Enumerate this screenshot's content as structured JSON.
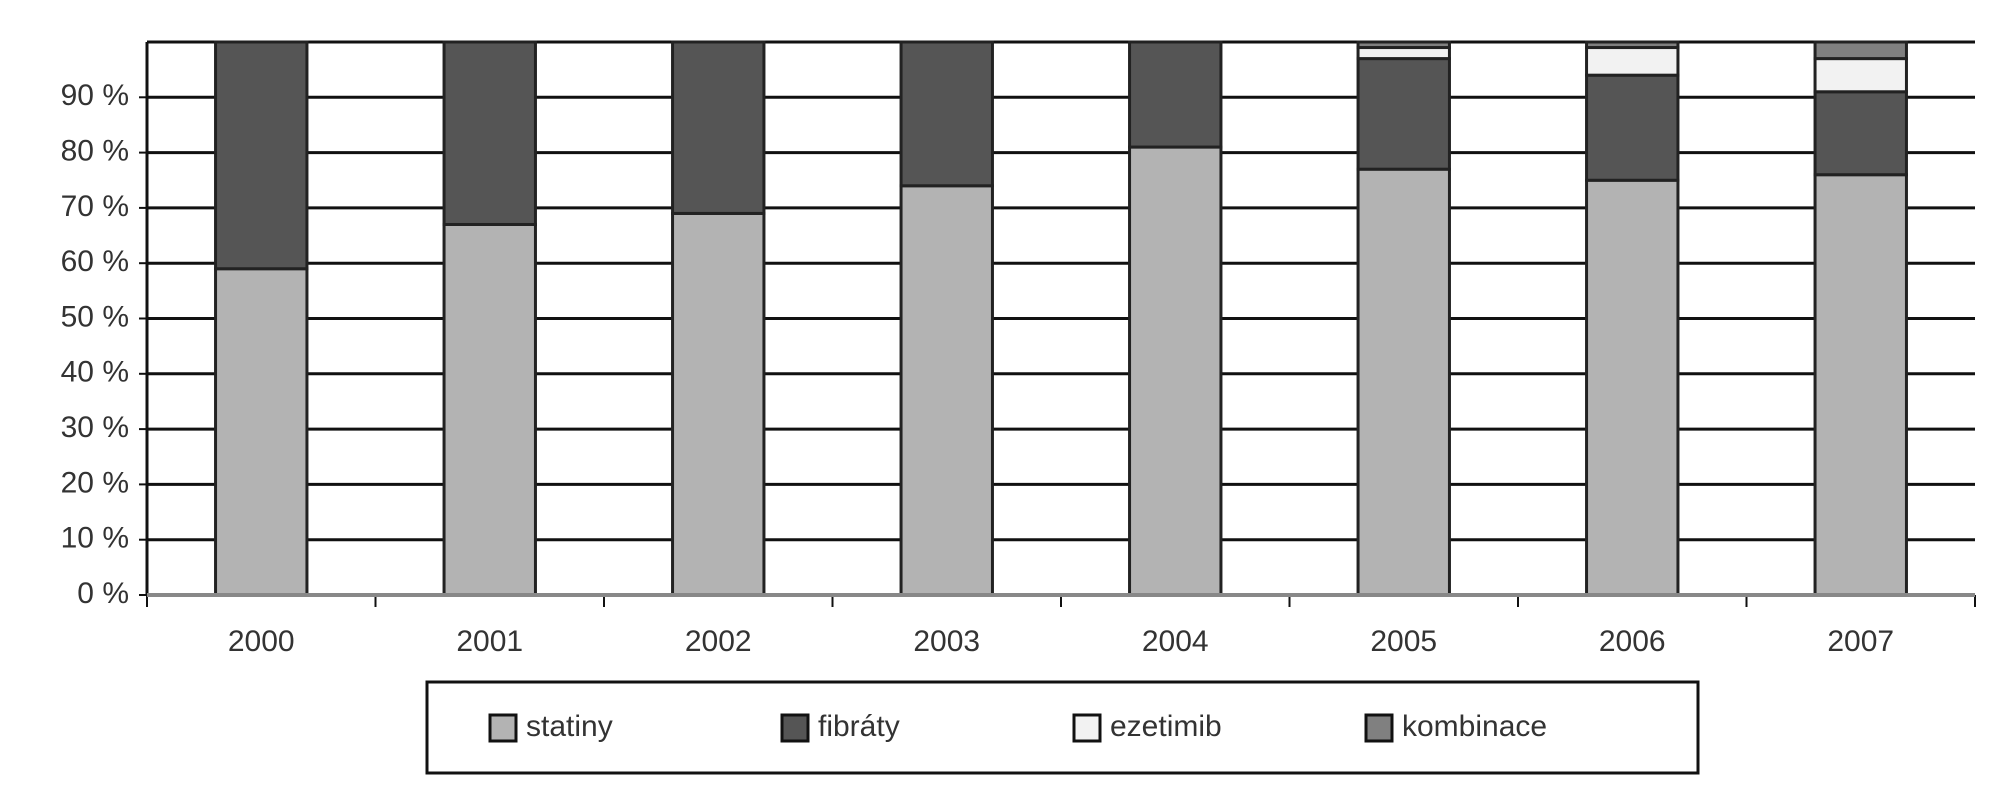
{
  "chart_data": {
    "type": "stacked_bar",
    "categories": [
      "2000",
      "2001",
      "2002",
      "2003",
      "2004",
      "2005",
      "2006",
      "2007"
    ],
    "series": [
      {
        "name": "statiny",
        "color": "#b3b3b3",
        "values": [
          59,
          67,
          69,
          74,
          81,
          77,
          75,
          76
        ]
      },
      {
        "name": "fibráty",
        "color": "#555555",
        "values": [
          41,
          33,
          31,
          26,
          19,
          20,
          19,
          15
        ]
      },
      {
        "name": "ezetimib",
        "color": "#f2f2f2",
        "values": [
          0,
          0,
          0,
          0,
          0,
          2,
          5,
          6
        ]
      },
      {
        "name": "kombinace",
        "color": "#808080",
        "values": [
          0,
          0,
          0,
          0,
          0,
          1,
          1,
          3
        ]
      }
    ],
    "ylim": [
      0,
      100
    ],
    "yticks": [
      {
        "value": 0,
        "label": "0 %"
      },
      {
        "value": 10,
        "label": "10 %"
      },
      {
        "value": 20,
        "label": "20 %"
      },
      {
        "value": 30,
        "label": "30 %"
      },
      {
        "value": 40,
        "label": "40 %"
      },
      {
        "value": 50,
        "label": "50 %"
      },
      {
        "value": 60,
        "label": "60 %"
      },
      {
        "value": 70,
        "label": "70 %"
      },
      {
        "value": 80,
        "label": "80 %"
      },
      {
        "value": 90,
        "label": "90 %"
      }
    ],
    "grid": true,
    "legend": "bottom"
  }
}
